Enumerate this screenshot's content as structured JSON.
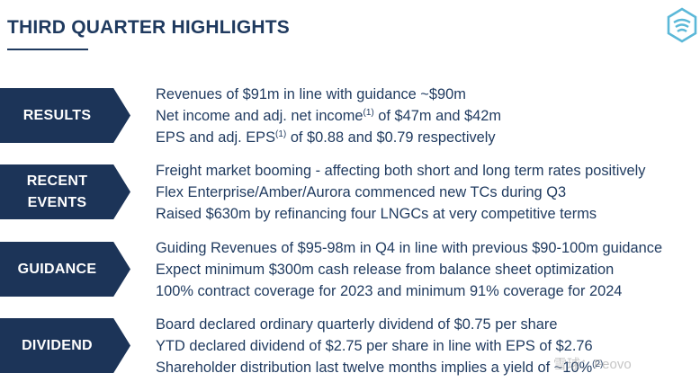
{
  "header": {
    "title": "THIRD QUARTER HIGHLIGHTS"
  },
  "logo": {
    "icon": "company-logo-icon",
    "color": "#5bb8d8"
  },
  "colors": {
    "navy": "#1c3458",
    "text": "#1f3a5f"
  },
  "sections": [
    {
      "label": "RESULTS",
      "lines": [
        {
          "text": "Revenues of $91m in line with guidance ~$90m"
        },
        {
          "pre": "Net income and adj. net income",
          "sup": "(1)",
          "post": " of $47m and $42m"
        },
        {
          "pre": "EPS and adj. EPS",
          "sup": "(1)",
          "post": " of $0.88 and $0.79 respectively"
        }
      ]
    },
    {
      "label": "RECENT\nEVENTS",
      "lines": [
        {
          "text": "Freight market booming - affecting both short and long term rates positively"
        },
        {
          "text": "Flex Enterprise/Amber/Aurora commenced new TCs during Q3"
        },
        {
          "text": "Raised $630m by refinancing four LNGCs at very competitive terms"
        }
      ]
    },
    {
      "label": "GUIDANCE",
      "lines": [
        {
          "text": "Guiding Revenues of $95-98m in Q4 in line with previous $90-100m guidance"
        },
        {
          "text": "Expect minimum $300m cash release from balance sheet optimization"
        },
        {
          "text": "100% contract coverage for 2023 and minimum 91% coverage for 2024"
        }
      ]
    },
    {
      "label": "DIVIDEND",
      "lines": [
        {
          "text": "Board declared ordinary quarterly dividend of $0.75 per share"
        },
        {
          "text": "YTD declared dividend of $2.75 per share in line with EPS of $2.76"
        },
        {
          "pre": "Shareholder distribution last twelve months implies a yield of ~10%",
          "sup": "(2)",
          "post": ""
        }
      ]
    }
  ],
  "watermark": "雪球：Feovo"
}
